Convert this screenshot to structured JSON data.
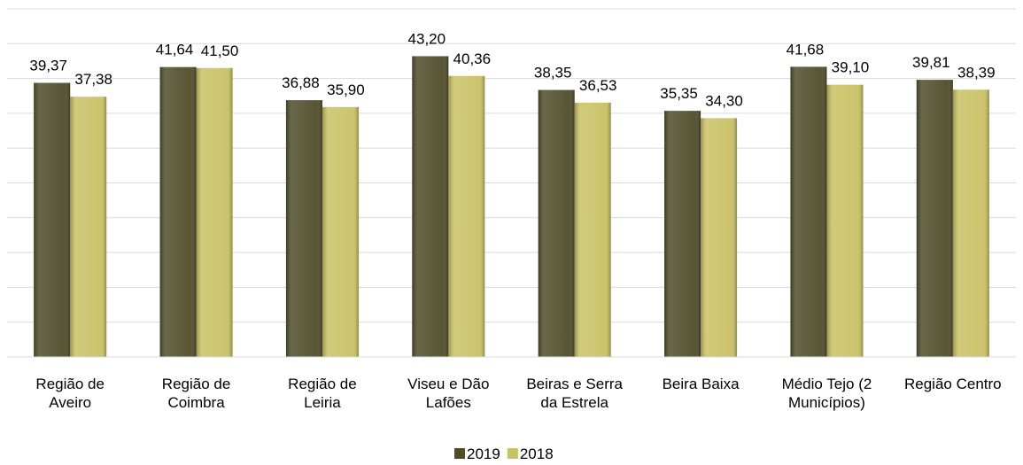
{
  "chart_data": {
    "type": "bar",
    "categories": [
      "Região de\nAveiro",
      "Região de\nCoimbra",
      "Região de\nLeiria",
      "Viseu e Dão\nLafões",
      "Beiras e Serra\nda Estrela",
      "Beira Baixa",
      "Médio Tejo (2\nMunicípios)",
      "Região Centro"
    ],
    "series": [
      {
        "name": "2019",
        "color": "#4f4c2a",
        "values": [
          39.37,
          41.64,
          36.88,
          43.2,
          38.35,
          35.35,
          41.68,
          39.81
        ],
        "value_labels": [
          "39,37",
          "41,64",
          "36,88",
          "43,20",
          "38,35",
          "35,35",
          "41,68",
          "39,81"
        ]
      },
      {
        "name": "2018",
        "color": "#c9c164",
        "values": [
          37.38,
          41.5,
          35.9,
          40.36,
          36.53,
          34.3,
          39.1,
          38.39
        ],
        "value_labels": [
          "37,38",
          "41,50",
          "35,90",
          "40,36",
          "36,53",
          "34,30",
          "39,10",
          "38,39"
        ]
      }
    ],
    "ylim": [
      0,
      50
    ],
    "yticks": [
      0,
      5,
      10,
      15,
      20,
      25,
      30,
      35,
      40,
      45,
      50
    ],
    "grid": true,
    "legend": "bottom"
  }
}
